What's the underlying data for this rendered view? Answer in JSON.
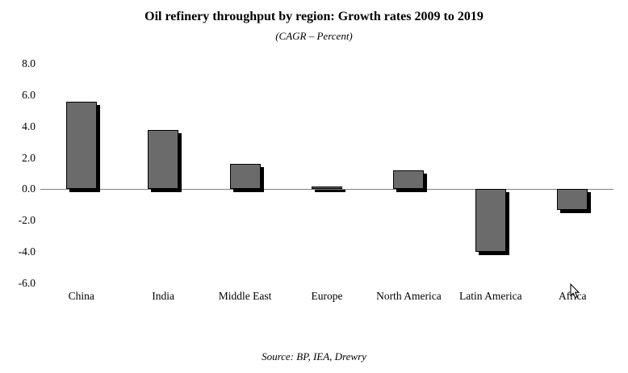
{
  "title": "Oil refinery throughput by region: Growth rates 2009 to 2019",
  "subtitle": "(CAGR – Percent)",
  "source": "Source: BP, IEA, Drewry",
  "chart_data": {
    "type": "bar",
    "title": "Oil refinery throughput by region: Growth rates 2009 to 2019",
    "subtitle": "(CAGR – Percent)",
    "categories": [
      "China",
      "India",
      "Middle East",
      "Europe",
      "North America",
      "Latin America",
      "Africa"
    ],
    "values": [
      5.6,
      3.8,
      1.6,
      0.2,
      1.2,
      -4.0,
      -1.3
    ],
    "xlabel": "",
    "ylabel": "",
    "ylim": [
      -6.0,
      8.0
    ],
    "ytick_step": 2.0,
    "yticks": [
      "8.0",
      "6.0",
      "4.0",
      "2.0",
      "0.0",
      "-2.0",
      "-4.0",
      "-6.0"
    ],
    "grid": false,
    "legend": false,
    "bar_color": "#6b6b6b",
    "bar_border_color": "#000000",
    "shadow_color": "#000000",
    "zero_line_color": "#808080",
    "annotation": "Source: BP, IEA, Drewry"
  }
}
